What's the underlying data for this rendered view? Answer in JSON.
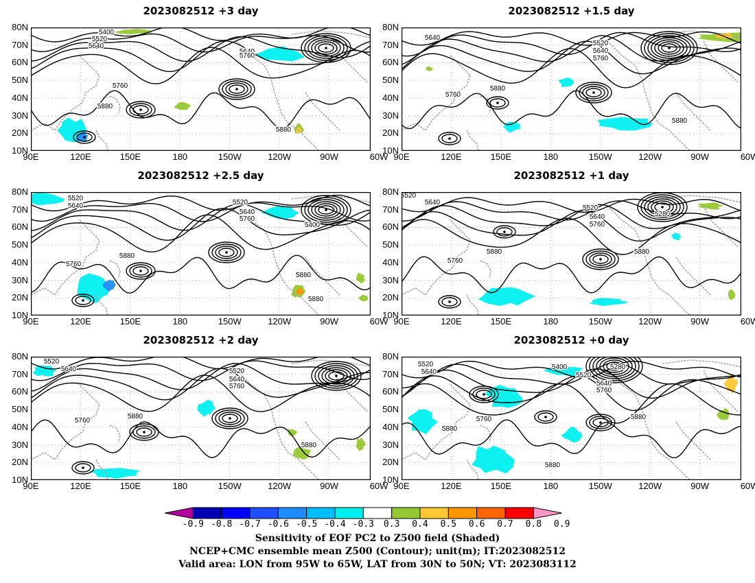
{
  "panels": [
    {
      "title": "2023082512  +3 day",
      "contour_labels": [
        "5400",
        "5520",
        "5640",
        "5640",
        "5760",
        "5760",
        "5880",
        "5880"
      ]
    },
    {
      "title": "2023082512  +1.5 day",
      "contour_labels": [
        "5640",
        "5520",
        "5640",
        "5760",
        "5760",
        "5880",
        "5880"
      ]
    },
    {
      "title": "2023082512  +2.5 day",
      "contour_labels": [
        "5520",
        "5640",
        "5520",
        "5640",
        "5760",
        "5400",
        "5760",
        "5880",
        "5880",
        "5880"
      ]
    },
    {
      "title": "2023082512  +1 day",
      "contour_labels": [
        "5520",
        "5640",
        "5520",
        "5640",
        "5760",
        "5280",
        "5760",
        "5880",
        "5880"
      ]
    },
    {
      "title": "2023082512  +2 day",
      "contour_labels": [
        "5520",
        "5640",
        "5520",
        "5640",
        "5760",
        "5760",
        "5880",
        "5880"
      ]
    },
    {
      "title": "2023082512  +0 day",
      "contour_labels": [
        "5520",
        "5640",
        "5400",
        "5280",
        "5520",
        "5640",
        "5760",
        "5760",
        "5880",
        "5880",
        "5880"
      ]
    }
  ],
  "lat_labels": [
    "80N",
    "70N",
    "60N",
    "50N",
    "40N",
    "30N",
    "20N",
    "10N"
  ],
  "lon_labels": [
    "90E",
    "120E",
    "150E",
    "180",
    "150W",
    "120W",
    "90W",
    "60W"
  ],
  "colorbar": {
    "labels": [
      "-0.9",
      "-0.8",
      "-0.7",
      "-0.6",
      "-0.5",
      "-0.4",
      "-0.3",
      "0.3",
      "0.4",
      "0.5",
      "0.6",
      "0.7",
      "0.8",
      "0.9"
    ],
    "colors": [
      "#b5009e",
      "#0000b4",
      "#0000ff",
      "#1e50ff",
      "#1e8cff",
      "#00bfff",
      "#00f0f0",
      "#ffffff",
      "#96c832",
      "#ffc832",
      "#ff9600",
      "#ff6400",
      "#ff0000",
      "#ff96c8"
    ]
  },
  "caption": {
    "line1": "Sensitivity of EOF PC2 to Z500 field (Shaded)",
    "line2": "NCEP+CMC ensemble mean Z500 (Contour); unit(m); IT:2023082512",
    "line3": "Valid area: LON from 95W to 65W, LAT from 30N to 50N; VT: 2023083112"
  },
  "map_extent": {
    "lon_min": 90,
    "lon_max": 295,
    "lat_min": 10,
    "lat_max": 80
  }
}
